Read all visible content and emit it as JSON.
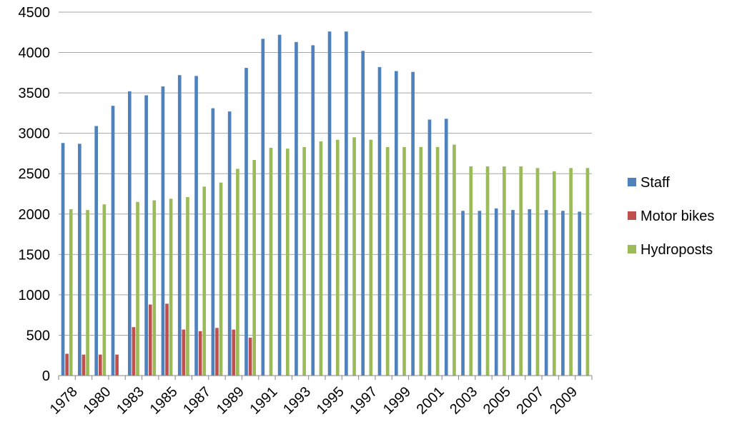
{
  "chart_data": {
    "type": "bar",
    "title": "",
    "xlabel": "",
    "ylabel": "",
    "ylim": [
      0,
      4500
    ],
    "yticks": [
      0,
      500,
      1000,
      1500,
      2000,
      2500,
      3000,
      3500,
      4000,
      4500
    ],
    "grid": "horizontal",
    "legend_position": "right",
    "categories": [
      "1978",
      "1979",
      "1980",
      "1981",
      "1983",
      "1984",
      "1985",
      "1986",
      "1987",
      "1988",
      "1989",
      "1990",
      "1991",
      "1992",
      "1993",
      "1994",
      "1995",
      "1996",
      "1997",
      "1998",
      "1999",
      "2000",
      "2001",
      "2002",
      "2003",
      "2004",
      "2005",
      "2006",
      "2007",
      "2008",
      "2009",
      "2010"
    ],
    "tick_labels": [
      "1978",
      "",
      "1980",
      "",
      "1983",
      "",
      "1985",
      "",
      "1987",
      "",
      "1989",
      "",
      "1991",
      "",
      "1993",
      "",
      "1995",
      "",
      "1997",
      "",
      "1999",
      "",
      "2001",
      "",
      "2003",
      "",
      "2005",
      "",
      "2007",
      "",
      "2009",
      ""
    ],
    "series": [
      {
        "name": "Staff",
        "color": "#4f81bd",
        "values": [
          2880,
          2870,
          3090,
          3340,
          3520,
          3470,
          3580,
          3720,
          3710,
          3310,
          3270,
          3810,
          4170,
          4220,
          4130,
          4090,
          4260,
          4260,
          4020,
          3820,
          3770,
          3760,
          3170,
          3180,
          2040,
          2040,
          2070,
          2050,
          2060,
          2050,
          2040,
          2030
        ]
      },
      {
        "name": "Motor bikes",
        "color": "#c0504d",
        "values": [
          270,
          260,
          260,
          260,
          600,
          880,
          890,
          570,
          550,
          590,
          570,
          470,
          null,
          null,
          null,
          null,
          null,
          null,
          null,
          null,
          null,
          null,
          null,
          null,
          null,
          null,
          null,
          null,
          null,
          null,
          null,
          null
        ]
      },
      {
        "name": "Hydroposts",
        "color": "#9bbb59",
        "values": [
          2060,
          2050,
          2120,
          null,
          2150,
          2170,
          2190,
          2210,
          2340,
          2390,
          2560,
          2670,
          2820,
          2810,
          2830,
          2900,
          2920,
          2950,
          2920,
          2830,
          2830,
          2830,
          2830,
          2860,
          2590,
          2590,
          2590,
          2590,
          2570,
          2530,
          2570,
          2570
        ]
      }
    ]
  }
}
